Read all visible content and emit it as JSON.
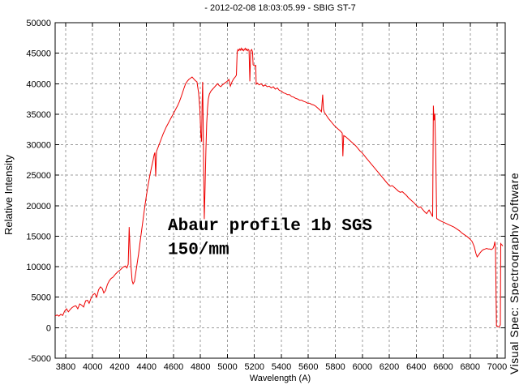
{
  "branding": "Visual Spec: Spectrography Software",
  "colors": {
    "background": "#ffffff",
    "curve": "#ee0000",
    "grid": "#9b9b9b",
    "axis": "#000000",
    "text": "#000000"
  },
  "annotation": {
    "line1": "Abaur profile 1b SGS",
    "line2": "150/mm"
  },
  "chart_data": {
    "type": "line",
    "title": "- 2012-02-08 18:03:05.99 - SBIG ST-7",
    "xlabel": "Wavelength (A)",
    "ylabel": "Relative Intensity",
    "xlim": [
      3722,
      7060
    ],
    "ylim": [
      -5000,
      50000
    ],
    "xticks": [
      3800,
      4000,
      4200,
      4400,
      4600,
      4800,
      5000,
      5200,
      5400,
      5600,
      5800,
      6000,
      6200,
      6400,
      6600,
      6800,
      7000
    ],
    "yticks": [
      -5000,
      0,
      5000,
      10000,
      15000,
      20000,
      25000,
      30000,
      35000,
      40000,
      45000,
      50000
    ],
    "grid": true,
    "grid_style": "dashed",
    "legend": "none",
    "annotations": [
      {
        "text": "Abaur profile 1b SGS",
        "x": 4558,
        "y": 16000
      },
      {
        "text": "150/mm",
        "x": 4558,
        "y": 12100
      }
    ],
    "series": [
      {
        "name": "spectrum",
        "color": "#ee0000",
        "points": [
          [
            3722,
            1900
          ],
          [
            3736,
            2100
          ],
          [
            3750,
            1900
          ],
          [
            3764,
            2200
          ],
          [
            3778,
            2000
          ],
          [
            3792,
            2700
          ],
          [
            3806,
            3100
          ],
          [
            3820,
            2600
          ],
          [
            3834,
            3000
          ],
          [
            3848,
            3300
          ],
          [
            3862,
            3500
          ],
          [
            3876,
            3600
          ],
          [
            3890,
            3100
          ],
          [
            3904,
            3900
          ],
          [
            3918,
            3700
          ],
          [
            3933,
            3400
          ],
          [
            3948,
            4400
          ],
          [
            3962,
            4500
          ],
          [
            3974,
            4000
          ],
          [
            3988,
            4800
          ],
          [
            4002,
            5400
          ],
          [
            4016,
            5600
          ],
          [
            4030,
            5000
          ],
          [
            4044,
            6200
          ],
          [
            4058,
            6700
          ],
          [
            4072,
            6400
          ],
          [
            4083,
            5700
          ],
          [
            4096,
            6100
          ],
          [
            4110,
            7100
          ],
          [
            4124,
            7700
          ],
          [
            4138,
            8100
          ],
          [
            4152,
            8300
          ],
          [
            4170,
            8800
          ],
          [
            4188,
            9200
          ],
          [
            4206,
            9500
          ],
          [
            4224,
            9900
          ],
          [
            4242,
            10100
          ],
          [
            4254,
            9800
          ],
          [
            4264,
            10400
          ],
          [
            4271,
            16500
          ],
          [
            4277,
            13000
          ],
          [
            4285,
            9900
          ],
          [
            4293,
            7700
          ],
          [
            4300,
            7200
          ],
          [
            4310,
            7600
          ],
          [
            4320,
            9000
          ],
          [
            4330,
            10500
          ],
          [
            4340,
            12000
          ],
          [
            4352,
            14000
          ],
          [
            4364,
            16000
          ],
          [
            4376,
            18000
          ],
          [
            4388,
            20000
          ],
          [
            4400,
            21800
          ],
          [
            4412,
            23400
          ],
          [
            4424,
            24900
          ],
          [
            4436,
            26200
          ],
          [
            4448,
            27400
          ],
          [
            4456,
            28300
          ],
          [
            4462,
            28700
          ],
          [
            4468,
            24800
          ],
          [
            4474,
            28900
          ],
          [
            4486,
            29600
          ],
          [
            4498,
            30300
          ],
          [
            4510,
            31000
          ],
          [
            4522,
            31700
          ],
          [
            4534,
            32300
          ],
          [
            4546,
            32900
          ],
          [
            4558,
            33400
          ],
          [
            4570,
            33900
          ],
          [
            4582,
            34400
          ],
          [
            4594,
            34900
          ],
          [
            4606,
            35400
          ],
          [
            4618,
            35900
          ],
          [
            4630,
            36400
          ],
          [
            4642,
            37000
          ],
          [
            4654,
            37700
          ],
          [
            4666,
            38500
          ],
          [
            4678,
            39300
          ],
          [
            4690,
            40000
          ],
          [
            4702,
            40400
          ],
          [
            4714,
            40700
          ],
          [
            4726,
            40900
          ],
          [
            4738,
            41100
          ],
          [
            4750,
            40800
          ],
          [
            4762,
            40500
          ],
          [
            4774,
            40300
          ],
          [
            4786,
            38500
          ],
          [
            4795,
            36000
          ],
          [
            4803,
            31500
          ],
          [
            4808,
            30500
          ],
          [
            4812,
            36500
          ],
          [
            4816,
            40300
          ],
          [
            4820,
            33000
          ],
          [
            4824,
            25000
          ],
          [
            4828,
            17800
          ],
          [
            4834,
            23000
          ],
          [
            4840,
            29000
          ],
          [
            4846,
            33500
          ],
          [
            4852,
            36000
          ],
          [
            4858,
            37500
          ],
          [
            4866,
            38300
          ],
          [
            4878,
            38800
          ],
          [
            4890,
            39100
          ],
          [
            4902,
            39400
          ],
          [
            4914,
            39700
          ],
          [
            4926,
            40000
          ],
          [
            4938,
            39700
          ],
          [
            4950,
            39500
          ],
          [
            4962,
            39800
          ],
          [
            4974,
            40000
          ],
          [
            4986,
            40200
          ],
          [
            4998,
            40400
          ],
          [
            5010,
            40700
          ],
          [
            5022,
            39600
          ],
          [
            5034,
            40300
          ],
          [
            5046,
            40800
          ],
          [
            5058,
            41100
          ],
          [
            5066,
            41400
          ],
          [
            5072,
            45300
          ],
          [
            5078,
            45600
          ],
          [
            5084,
            45400
          ],
          [
            5090,
            45700
          ],
          [
            5096,
            45500
          ],
          [
            5102,
            45800
          ],
          [
            5108,
            45500
          ],
          [
            5114,
            45700
          ],
          [
            5120,
            45400
          ],
          [
            5126,
            45600
          ],
          [
            5132,
            45800
          ],
          [
            5138,
            45500
          ],
          [
            5144,
            45700
          ],
          [
            5150,
            45400
          ],
          [
            5156,
            45600
          ],
          [
            5160,
            45500
          ],
          [
            5166,
            40400
          ],
          [
            5172,
            45400
          ],
          [
            5180,
            45600
          ],
          [
            5186,
            45200
          ],
          [
            5190,
            43100
          ],
          [
            5202,
            42900
          ],
          [
            5210,
            43000
          ],
          [
            5213,
            39900
          ],
          [
            5222,
            40100
          ],
          [
            5235,
            39800
          ],
          [
            5250,
            40000
          ],
          [
            5265,
            39600
          ],
          [
            5280,
            39800
          ],
          [
            5295,
            39500
          ],
          [
            5310,
            39600
          ],
          [
            5325,
            39300
          ],
          [
            5340,
            39500
          ],
          [
            5355,
            39100
          ],
          [
            5370,
            39300
          ],
          [
            5385,
            38900
          ],
          [
            5400,
            38800
          ],
          [
            5415,
            38500
          ],
          [
            5430,
            38400
          ],
          [
            5445,
            38200
          ],
          [
            5460,
            38200
          ],
          [
            5475,
            37900
          ],
          [
            5490,
            37800
          ],
          [
            5505,
            37600
          ],
          [
            5520,
            37500
          ],
          [
            5535,
            37300
          ],
          [
            5550,
            37300
          ],
          [
            5565,
            37100
          ],
          [
            5580,
            37000
          ],
          [
            5595,
            36800
          ],
          [
            5610,
            36800
          ],
          [
            5625,
            36600
          ],
          [
            5640,
            36500
          ],
          [
            5655,
            36300
          ],
          [
            5670,
            36000
          ],
          [
            5685,
            35700
          ],
          [
            5697,
            35400
          ],
          [
            5706,
            38200
          ],
          [
            5712,
            35800
          ],
          [
            5719,
            35300
          ],
          [
            5734,
            34800
          ],
          [
            5749,
            34300
          ],
          [
            5764,
            33900
          ],
          [
            5779,
            33500
          ],
          [
            5794,
            33100
          ],
          [
            5809,
            32800
          ],
          [
            5824,
            32500
          ],
          [
            5839,
            32200
          ],
          [
            5851,
            31900
          ],
          [
            5856,
            28100
          ],
          [
            5862,
            31500
          ],
          [
            5877,
            31300
          ],
          [
            5892,
            31000
          ],
          [
            5907,
            30700
          ],
          [
            5922,
            30400
          ],
          [
            5937,
            30100
          ],
          [
            5952,
            29800
          ],
          [
            5967,
            29400
          ],
          [
            5982,
            29000
          ],
          [
            5997,
            28700
          ],
          [
            6012,
            28300
          ],
          [
            6027,
            27900
          ],
          [
            6042,
            27500
          ],
          [
            6057,
            27100
          ],
          [
            6072,
            26700
          ],
          [
            6087,
            26300
          ],
          [
            6102,
            25900
          ],
          [
            6117,
            25500
          ],
          [
            6132,
            25100
          ],
          [
            6147,
            24700
          ],
          [
            6162,
            24300
          ],
          [
            6177,
            23900
          ],
          [
            6192,
            23500
          ],
          [
            6207,
            23200
          ],
          [
            6222,
            23300
          ],
          [
            6237,
            23000
          ],
          [
            6252,
            22700
          ],
          [
            6267,
            22400
          ],
          [
            6282,
            22200
          ],
          [
            6297,
            22300
          ],
          [
            6312,
            22000
          ],
          [
            6327,
            21700
          ],
          [
            6342,
            21300
          ],
          [
            6357,
            21000
          ],
          [
            6372,
            20700
          ],
          [
            6387,
            20400
          ],
          [
            6402,
            20000
          ],
          [
            6417,
            19700
          ],
          [
            6432,
            19800
          ],
          [
            6447,
            19400
          ],
          [
            6462,
            19000
          ],
          [
            6477,
            18700
          ],
          [
            6495,
            19300
          ],
          [
            6510,
            18700
          ],
          [
            6522,
            18200
          ],
          [
            6527,
            36400
          ],
          [
            6532,
            34000
          ],
          [
            6538,
            35100
          ],
          [
            6545,
            28000
          ],
          [
            6552,
            17900
          ],
          [
            6565,
            17700
          ],
          [
            6580,
            17500
          ],
          [
            6600,
            17300
          ],
          [
            6620,
            17100
          ],
          [
            6640,
            16900
          ],
          [
            6660,
            16700
          ],
          [
            6680,
            16500
          ],
          [
            6700,
            16200
          ],
          [
            6720,
            15900
          ],
          [
            6740,
            15500
          ],
          [
            6760,
            15200
          ],
          [
            6780,
            14900
          ],
          [
            6800,
            14500
          ],
          [
            6815,
            14100
          ],
          [
            6830,
            13300
          ],
          [
            6842,
            12200
          ],
          [
            6852,
            11600
          ],
          [
            6862,
            11900
          ],
          [
            6874,
            12300
          ],
          [
            6886,
            12600
          ],
          [
            6898,
            12800
          ],
          [
            6910,
            12900
          ],
          [
            6922,
            13000
          ],
          [
            6934,
            12900
          ],
          [
            6946,
            12900
          ],
          [
            6958,
            12800
          ],
          [
            6970,
            13000
          ],
          [
            6978,
            13500
          ],
          [
            6983,
            14100
          ],
          [
            6988,
            13100
          ],
          [
            6995,
            300
          ],
          [
            7002,
            200
          ],
          [
            7010,
            170
          ],
          [
            7018,
            200
          ],
          [
            7024,
            500
          ],
          [
            7027,
            13800
          ],
          [
            7034,
            13600
          ],
          [
            7042,
            13400
          ]
        ]
      }
    ]
  }
}
